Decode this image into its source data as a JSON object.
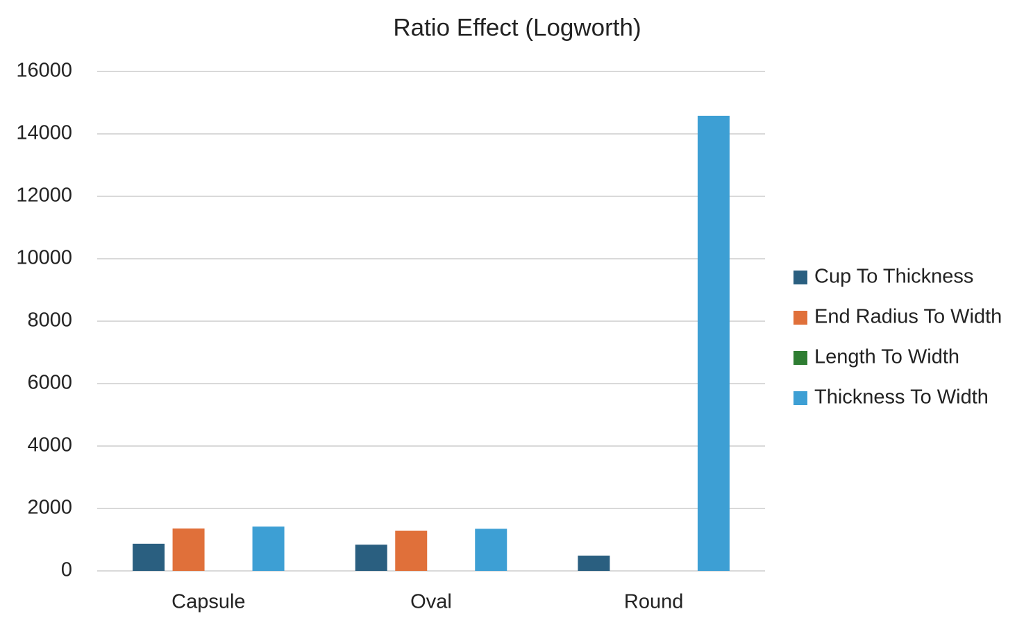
{
  "chart_data": {
    "type": "bar",
    "title": "Ratio Effect (Logworth)",
    "categories": [
      "Capsule",
      "Oval",
      "Round"
    ],
    "series": [
      {
        "name": "Cup To Thickness",
        "color": "#2a5f80",
        "values": [
          870,
          840,
          490
        ]
      },
      {
        "name": "End Radius To Width",
        "color": "#e0703a",
        "values": [
          1360,
          1290,
          0
        ]
      },
      {
        "name": "Length To Width",
        "color": "#2e7d32",
        "values": [
          0,
          0,
          0
        ]
      },
      {
        "name": "Thickness To Width",
        "color": "#3d9fd4",
        "values": [
          1420,
          1350,
          14580
        ]
      }
    ],
    "ylim": [
      0,
      16000
    ],
    "yticks": [
      0,
      2000,
      4000,
      6000,
      8000,
      10000,
      12000,
      14000,
      16000
    ],
    "grid": true,
    "legend": "right"
  }
}
